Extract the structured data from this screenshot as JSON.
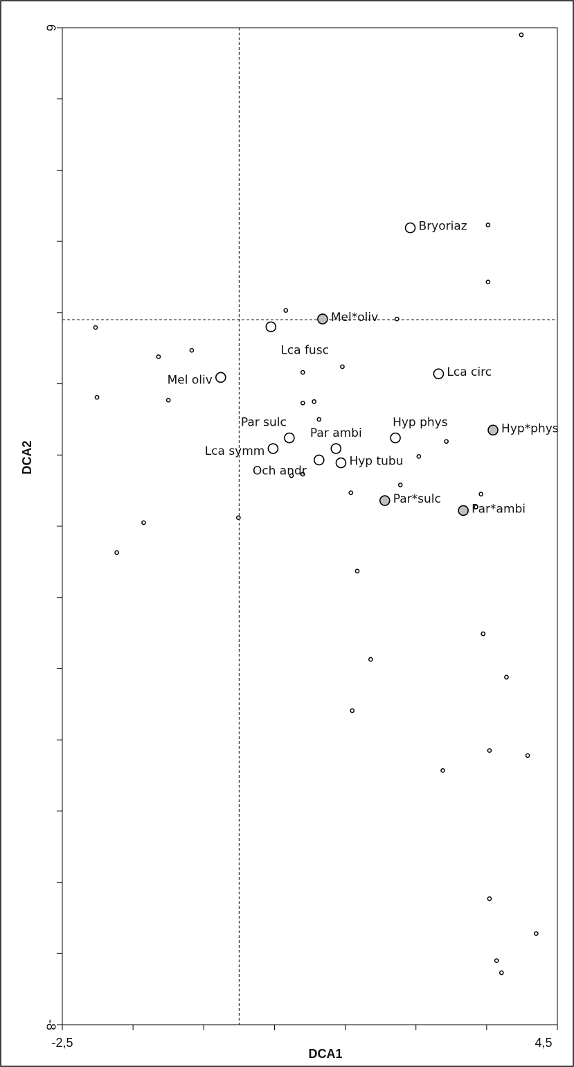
{
  "chart_data": {
    "type": "scatter",
    "xlabel": "DCA1",
    "ylabel": "DCA2",
    "xlim": [
      -2.5,
      4.5
    ],
    "ylim": [
      -8,
      6
    ],
    "xticks": [
      {
        "value": -2.5,
        "label": "-2,5"
      },
      {
        "value": 4.5,
        "label": "4,5"
      }
    ],
    "yticks": [
      6,
      -8
    ],
    "xticks_minor": [
      -1.5,
      -0.5,
      0.5,
      1.5,
      2.5,
      3.5
    ],
    "yticks_minor": [
      5,
      4,
      3,
      2,
      1,
      0,
      -1,
      -2,
      -3,
      -4,
      -5,
      -6,
      -7
    ],
    "vline": 0,
    "hline": 1.9,
    "series": [
      {
        "marker": "small",
        "color": "#ffffff",
        "x": [
          3.99,
          3.52,
          3.52,
          0.66,
          2.23,
          -2.03,
          -1.14,
          -0.67,
          1.46,
          0.9,
          -2.01,
          -1.0,
          0.9,
          1.06,
          1.13,
          2.93,
          2.54,
          0.74,
          0.9,
          1.58,
          2.28,
          3.42,
          3.35,
          -0.01,
          -1.35,
          -1.73,
          1.67,
          3.45,
          1.86,
          3.78,
          1.6,
          3.54,
          4.08,
          2.88,
          3.54,
          4.2,
          3.64,
          3.71
        ],
        "y": [
          5.9,
          3.23,
          2.43,
          2.03,
          1.91,
          1.79,
          1.38,
          1.47,
          1.24,
          1.16,
          0.81,
          0.77,
          0.73,
          0.75,
          0.5,
          0.19,
          -0.02,
          -0.29,
          -0.27,
          -0.53,
          -0.42,
          -0.55,
          -0.73,
          -0.88,
          -0.95,
          -1.37,
          -1.63,
          -2.51,
          -2.87,
          -3.12,
          -3.59,
          -4.15,
          -4.22,
          -4.43,
          -6.23,
          -6.72,
          -7.1,
          -7.27
        ]
      },
      {
        "marker": "large",
        "color": "#ffffff",
        "x": [
          2.42,
          0.45,
          -0.26,
          2.82,
          0.71,
          0.48,
          1.37,
          2.21,
          1.13,
          1.44
        ],
        "y": [
          3.19,
          1.8,
          1.09,
          1.14,
          0.24,
          0.09,
          0.09,
          0.24,
          -0.07,
          -0.11
        ],
        "labels": [
          "Bryoriaz",
          "Lca fusc",
          "Mel oliv",
          "Lca circ",
          "Par sulc",
          "Lca symm",
          "Par ambi",
          "Hyp phys",
          "Och andr",
          "Hyp tubu"
        ],
        "label_pos": [
          "right",
          "below-right",
          "left",
          "right",
          "above-left",
          "left",
          "above",
          "above-right",
          "below-left",
          "right"
        ]
      },
      {
        "marker": "large",
        "color": "#c0c0c0",
        "x": [
          1.18,
          3.59,
          2.06,
          3.17
        ],
        "y": [
          1.91,
          0.35,
          -0.64,
          -0.78
        ],
        "labels": [
          "Mel*oliv",
          "Hyp*phys",
          "Par*sulc",
          "Par*ambi"
        ],
        "label_pos": [
          "right",
          "right",
          "right",
          "right"
        ]
      }
    ]
  }
}
